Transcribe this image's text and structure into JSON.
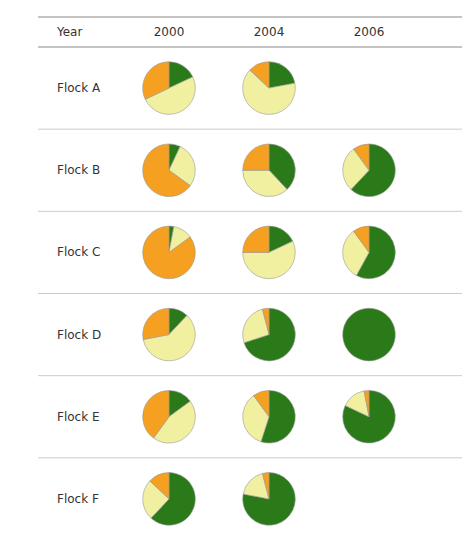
{
  "chart_data": {
    "type": "pie",
    "xlabel": "Year",
    "categories": [
      "2000",
      "2004",
      "2006"
    ],
    "rows": [
      "Flock A",
      "Flock B",
      "Flock C",
      "Flock D",
      "Flock E",
      "Flock F"
    ],
    "colors": [
      "#2a7a1a",
      "#f0f0a0",
      "#f5a020"
    ],
    "values": [
      [
        [
          0.18,
          0.5,
          0.32
        ],
        [
          0.22,
          0.65,
          0.13
        ],
        null
      ],
      [
        [
          0.07,
          0.28,
          0.65
        ],
        [
          0.38,
          0.37,
          0.25
        ],
        [
          0.62,
          0.28,
          0.1
        ]
      ],
      [
        [
          0.03,
          0.12,
          0.85
        ],
        [
          0.18,
          0.57,
          0.25
        ],
        [
          0.58,
          0.32,
          0.1
        ]
      ],
      [
        [
          0.12,
          0.6,
          0.28
        ],
        [
          0.7,
          0.26,
          0.04
        ],
        [
          1.0,
          0.0,
          0.0
        ]
      ],
      [
        [
          0.15,
          0.45,
          0.4
        ],
        [
          0.55,
          0.35,
          0.1
        ],
        [
          0.82,
          0.15,
          0.03
        ]
      ],
      [
        [
          0.62,
          0.25,
          0.13
        ],
        [
          0.78,
          0.18,
          0.04
        ],
        null
      ]
    ]
  }
}
